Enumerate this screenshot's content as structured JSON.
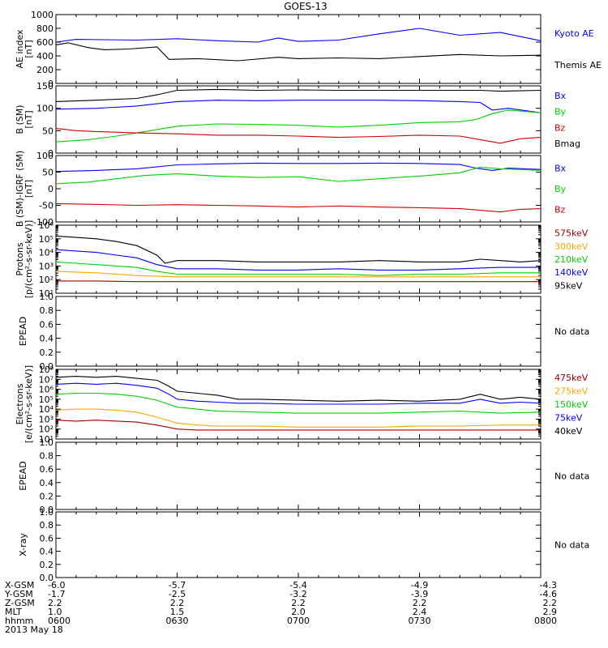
{
  "title": "GOES-13",
  "colors": {
    "black": "#000000",
    "blue": "#0000ff",
    "green": "#00d000",
    "red": "#d00000",
    "orange": "#ffa500",
    "darkred": "#a00000"
  },
  "chart_data": [
    {
      "id": "ae",
      "type": "line",
      "ylabel": [
        "AE index",
        "[nT]"
      ],
      "ylim": [
        0,
        1000
      ],
      "yticks": [
        "0",
        "200",
        "400",
        "600",
        "800",
        "1000"
      ],
      "legend": [
        {
          "text": "Kyoto AE",
          "color": "blue"
        },
        {
          "text": "Themis AE",
          "color": "black"
        }
      ],
      "series": [
        {
          "name": "Kyoto AE",
          "color": "blue",
          "t": [
            0,
            5,
            20,
            30,
            40,
            50,
            55,
            60,
            70,
            80,
            90,
            100,
            110,
            115,
            120
          ],
          "y": [
            600,
            640,
            630,
            650,
            620,
            600,
            660,
            610,
            630,
            720,
            800,
            700,
            740,
            680,
            620
          ]
        },
        {
          "name": "Themis AE",
          "color": "black",
          "t": [
            0,
            3,
            8,
            12,
            18,
            25,
            28,
            35,
            45,
            55,
            60,
            70,
            80,
            90,
            100,
            110,
            120
          ],
          "y": [
            560,
            590,
            520,
            490,
            500,
            530,
            350,
            360,
            330,
            380,
            360,
            370,
            360,
            390,
            420,
            400,
            410
          ]
        }
      ]
    },
    {
      "id": "bsm",
      "type": "line",
      "ylabel": [
        "B (SM)",
        "[nT]"
      ],
      "ylim": [
        0,
        150
      ],
      "yticks": [
        "0",
        "50",
        "100",
        "150"
      ],
      "legend": [
        {
          "text": "Bx",
          "color": "blue"
        },
        {
          "text": "By",
          "color": "green"
        },
        {
          "text": "Bz",
          "color": "red"
        },
        {
          "text": "Bmag",
          "color": "black"
        }
      ],
      "series": [
        {
          "name": "Bmag",
          "color": "black",
          "t": [
            0,
            10,
            20,
            25,
            30,
            40,
            50,
            60,
            70,
            80,
            90,
            100,
            105,
            110,
            120
          ],
          "y": [
            115,
            118,
            122,
            130,
            140,
            142,
            140,
            141,
            140,
            140,
            140,
            140,
            140,
            138,
            140
          ]
        },
        {
          "name": "Bx",
          "color": "blue",
          "t": [
            0,
            10,
            20,
            25,
            30,
            40,
            50,
            60,
            70,
            80,
            90,
            100,
            105,
            108,
            112,
            120
          ],
          "y": [
            98,
            100,
            105,
            110,
            115,
            118,
            117,
            118,
            118,
            118,
            117,
            115,
            113,
            96,
            100,
            90
          ]
        },
        {
          "name": "By",
          "color": "green",
          "t": [
            0,
            8,
            15,
            22,
            30,
            40,
            50,
            60,
            70,
            80,
            90,
            100,
            104,
            108,
            112,
            120
          ],
          "y": [
            25,
            30,
            38,
            48,
            60,
            65,
            64,
            62,
            58,
            62,
            68,
            70,
            75,
            88,
            96,
            90
          ]
        },
        {
          "name": "Bz",
          "color": "red",
          "t": [
            0,
            5,
            10,
            20,
            30,
            40,
            50,
            60,
            70,
            80,
            90,
            100,
            105,
            110,
            115,
            120
          ],
          "y": [
            55,
            50,
            48,
            45,
            43,
            40,
            40,
            38,
            35,
            37,
            40,
            38,
            30,
            22,
            32,
            35
          ]
        }
      ]
    },
    {
      "id": "bigrf",
      "type": "line",
      "ylabel": [
        "B (SM)-IGRF (SM)",
        "[nT]"
      ],
      "ylim": [
        -100,
        100
      ],
      "yticks": [
        "-100",
        "-50",
        "0",
        "50",
        "100"
      ],
      "legend": [
        {
          "text": "Bx",
          "color": "blue"
        },
        {
          "text": "By",
          "color": "green"
        },
        {
          "text": "Bz",
          "color": "red"
        }
      ],
      "series": [
        {
          "name": "Bx",
          "color": "blue",
          "t": [
            0,
            10,
            20,
            30,
            40,
            50,
            60,
            70,
            80,
            90,
            100,
            104,
            108,
            112,
            120
          ],
          "y": [
            52,
            55,
            60,
            72,
            75,
            77,
            76,
            76,
            77,
            76,
            73,
            62,
            55,
            62,
            58
          ]
        },
        {
          "name": "By",
          "color": "green",
          "t": [
            0,
            8,
            15,
            22,
            30,
            40,
            50,
            60,
            70,
            80,
            90,
            100,
            105,
            110,
            120
          ],
          "y": [
            15,
            20,
            30,
            40,
            45,
            38,
            34,
            36,
            22,
            30,
            38,
            48,
            65,
            60,
            55
          ]
        },
        {
          "name": "Bz",
          "color": "red",
          "t": [
            0,
            10,
            20,
            30,
            40,
            50,
            60,
            70,
            80,
            90,
            100,
            105,
            110,
            115,
            120
          ],
          "y": [
            -45,
            -47,
            -50,
            -48,
            -50,
            -52,
            -55,
            -52,
            -55,
            -57,
            -60,
            -65,
            -70,
            -62,
            -60
          ]
        }
      ]
    },
    {
      "id": "protons",
      "type": "line",
      "ylabel": [
        "Protons",
        "[p/(cm²-s-sr-keV)]"
      ],
      "ylog": [
        1,
        6
      ],
      "yticks": [
        "10¹",
        "10²",
        "10³",
        "10⁴",
        "10⁵",
        "10⁶"
      ],
      "legend": [
        {
          "text": "575keV",
          "color": "darkred"
        },
        {
          "text": "300keV",
          "color": "orange"
        },
        {
          "text": "210keV",
          "color": "green"
        },
        {
          "text": "140keV",
          "color": "blue"
        },
        {
          "text": "95keV",
          "color": "black"
        }
      ],
      "series": [
        {
          "name": "95keV",
          "color": "black",
          "t": [
            0,
            5,
            10,
            15,
            20,
            25,
            27,
            30,
            40,
            50,
            60,
            70,
            80,
            90,
            100,
            105,
            110,
            115,
            120
          ],
          "y": [
            5.2,
            5.1,
            5.0,
            4.8,
            4.5,
            3.8,
            3.2,
            3.4,
            3.4,
            3.3,
            3.3,
            3.3,
            3.4,
            3.3,
            3.3,
            3.5,
            3.4,
            3.3,
            3.4
          ]
        },
        {
          "name": "140keV",
          "color": "blue",
          "t": [
            0,
            5,
            10,
            15,
            20,
            25,
            30,
            40,
            50,
            60,
            70,
            80,
            90,
            100,
            110,
            120
          ],
          "y": [
            4.2,
            4.1,
            4.0,
            3.8,
            3.6,
            3.1,
            2.8,
            2.8,
            2.7,
            2.7,
            2.8,
            2.7,
            2.7,
            2.8,
            2.9,
            2.9
          ]
        },
        {
          "name": "210keV",
          "color": "green",
          "t": [
            0,
            5,
            10,
            15,
            20,
            25,
            30,
            40,
            50,
            60,
            70,
            80,
            90,
            100,
            110,
            120
          ],
          "y": [
            3.3,
            3.2,
            3.1,
            3.0,
            2.9,
            2.6,
            2.4,
            2.4,
            2.4,
            2.4,
            2.4,
            2.3,
            2.4,
            2.4,
            2.5,
            2.5
          ]
        },
        {
          "name": "300keV",
          "color": "orange",
          "t": [
            0,
            10,
            20,
            30,
            40,
            50,
            60,
            70,
            80,
            90,
            100,
            110,
            120
          ],
          "y": [
            2.6,
            2.5,
            2.3,
            2.2,
            2.2,
            2.2,
            2.2,
            2.2,
            2.2,
            2.2,
            2.2,
            2.2,
            2.2
          ]
        },
        {
          "name": "575keV",
          "color": "darkred",
          "t": [
            0,
            10,
            20,
            30,
            40,
            50,
            60,
            70,
            80,
            90,
            100,
            110,
            120
          ],
          "y": [
            1.9,
            1.9,
            1.85,
            1.85,
            1.85,
            1.85,
            1.85,
            1.85,
            1.85,
            1.85,
            1.85,
            1.85,
            1.85
          ]
        }
      ]
    },
    {
      "id": "epead1",
      "type": "line",
      "ylabel": [
        "EPEAD"
      ],
      "ylim": [
        0,
        1
      ],
      "yticks": [
        "0.0",
        "0.2",
        "0.4",
        "0.6",
        "0.8",
        "1.0"
      ],
      "nodata": "No data",
      "series": []
    },
    {
      "id": "electrons",
      "type": "line",
      "ylabel": [
        "Electrons",
        "[e/(cm²-s-sr-keV)]"
      ],
      "ylog": [
        1,
        8
      ],
      "yticks": [
        "10¹",
        "10²",
        "10³",
        "10⁴",
        "10⁵",
        "10⁶",
        "10⁷",
        "10⁸"
      ],
      "legend": [
        {
          "text": "475keV",
          "color": "darkred"
        },
        {
          "text": "275keV",
          "color": "orange"
        },
        {
          "text": "150keV",
          "color": "green"
        },
        {
          "text": "75keV",
          "color": "blue"
        },
        {
          "text": "40keV",
          "color": "black"
        }
      ],
      "series": [
        {
          "name": "40keV",
          "color": "black",
          "t": [
            0,
            5,
            10,
            15,
            20,
            25,
            28,
            30,
            35,
            40,
            45,
            50,
            60,
            70,
            80,
            90,
            100,
            105,
            110,
            115,
            120
          ],
          "y": [
            7.2,
            7.3,
            7.2,
            7.3,
            7.1,
            6.9,
            6.3,
            5.8,
            5.6,
            5.4,
            5.0,
            5.0,
            4.9,
            4.8,
            4.9,
            4.8,
            5.0,
            5.5,
            5.0,
            5.2,
            5.0
          ]
        },
        {
          "name": "75keV",
          "color": "blue",
          "t": [
            0,
            5,
            10,
            15,
            20,
            25,
            28,
            30,
            35,
            40,
            45,
            50,
            60,
            70,
            80,
            90,
            100,
            105,
            110,
            115,
            120
          ],
          "y": [
            6.5,
            6.6,
            6.5,
            6.6,
            6.4,
            6.1,
            5.5,
            5.0,
            4.8,
            4.7,
            4.6,
            4.6,
            4.5,
            4.5,
            4.5,
            4.6,
            4.6,
            5.0,
            4.6,
            4.7,
            4.6
          ]
        },
        {
          "name": "150keV",
          "color": "green",
          "t": [
            0,
            5,
            10,
            15,
            20,
            25,
            30,
            35,
            40,
            50,
            60,
            70,
            80,
            90,
            100,
            110,
            120
          ],
          "y": [
            5.5,
            5.6,
            5.6,
            5.5,
            5.3,
            4.9,
            4.2,
            4.0,
            3.8,
            3.7,
            3.6,
            3.6,
            3.6,
            3.7,
            3.8,
            3.6,
            3.7
          ]
        },
        {
          "name": "275keV",
          "color": "orange",
          "t": [
            0,
            5,
            10,
            15,
            20,
            25,
            30,
            35,
            40,
            50,
            60,
            70,
            80,
            90,
            100,
            110,
            120
          ],
          "y": [
            3.9,
            4.0,
            4.0,
            3.9,
            3.7,
            3.2,
            2.6,
            2.4,
            2.3,
            2.3,
            2.2,
            2.2,
            2.2,
            2.3,
            2.3,
            2.4,
            2.4
          ]
        },
        {
          "name": "475keV",
          "color": "darkred",
          "t": [
            0,
            5,
            10,
            15,
            20,
            25,
            30,
            35,
            40,
            50,
            60,
            70,
            80,
            90,
            100,
            110,
            120
          ],
          "y": [
            2.9,
            2.8,
            2.9,
            2.8,
            2.7,
            2.4,
            2.0,
            1.9,
            1.9,
            1.9,
            1.9,
            1.9,
            1.9,
            1.9,
            1.9,
            1.9,
            1.9
          ]
        }
      ]
    },
    {
      "id": "epead2",
      "type": "line",
      "ylabel": [
        "EPEAD"
      ],
      "ylim": [
        0,
        1
      ],
      "yticks": [
        "0.0",
        "0.2",
        "0.4",
        "0.6",
        "0.8",
        "1.0"
      ],
      "nodata": "No data",
      "series": []
    },
    {
      "id": "xray",
      "type": "line",
      "ylabel": [
        "X-ray"
      ],
      "ylim": [
        0,
        1
      ],
      "yticks": [
        "0.0",
        "0.2",
        "0.4",
        "0.6",
        "0.8",
        "1.0"
      ],
      "nodata": "No data",
      "series": []
    }
  ],
  "ephemeris": {
    "row_labels": [
      "X-GSM",
      "Y-GSM",
      "Z-GSM",
      "MLT",
      "hhmm"
    ],
    "date": "2013 May 18",
    "columns": [
      {
        "t": 0,
        "values": [
          "-6.0",
          "-1.7",
          "2.2",
          "1.0",
          "0600"
        ]
      },
      {
        "t": 30,
        "values": [
          "-5.7",
          "-2.5",
          "2.2",
          "1.5",
          "0630"
        ]
      },
      {
        "t": 60,
        "values": [
          "-5.4",
          "-3.2",
          "2.2",
          "2.0",
          "0700"
        ]
      },
      {
        "t": 90,
        "values": [
          "-4.9",
          "-3.9",
          "2.2",
          "2.4",
          "0730"
        ]
      },
      {
        "t": 120,
        "values": [
          "-4.3",
          "-4.6",
          "2.2",
          "2.9",
          "0800"
        ]
      }
    ]
  }
}
